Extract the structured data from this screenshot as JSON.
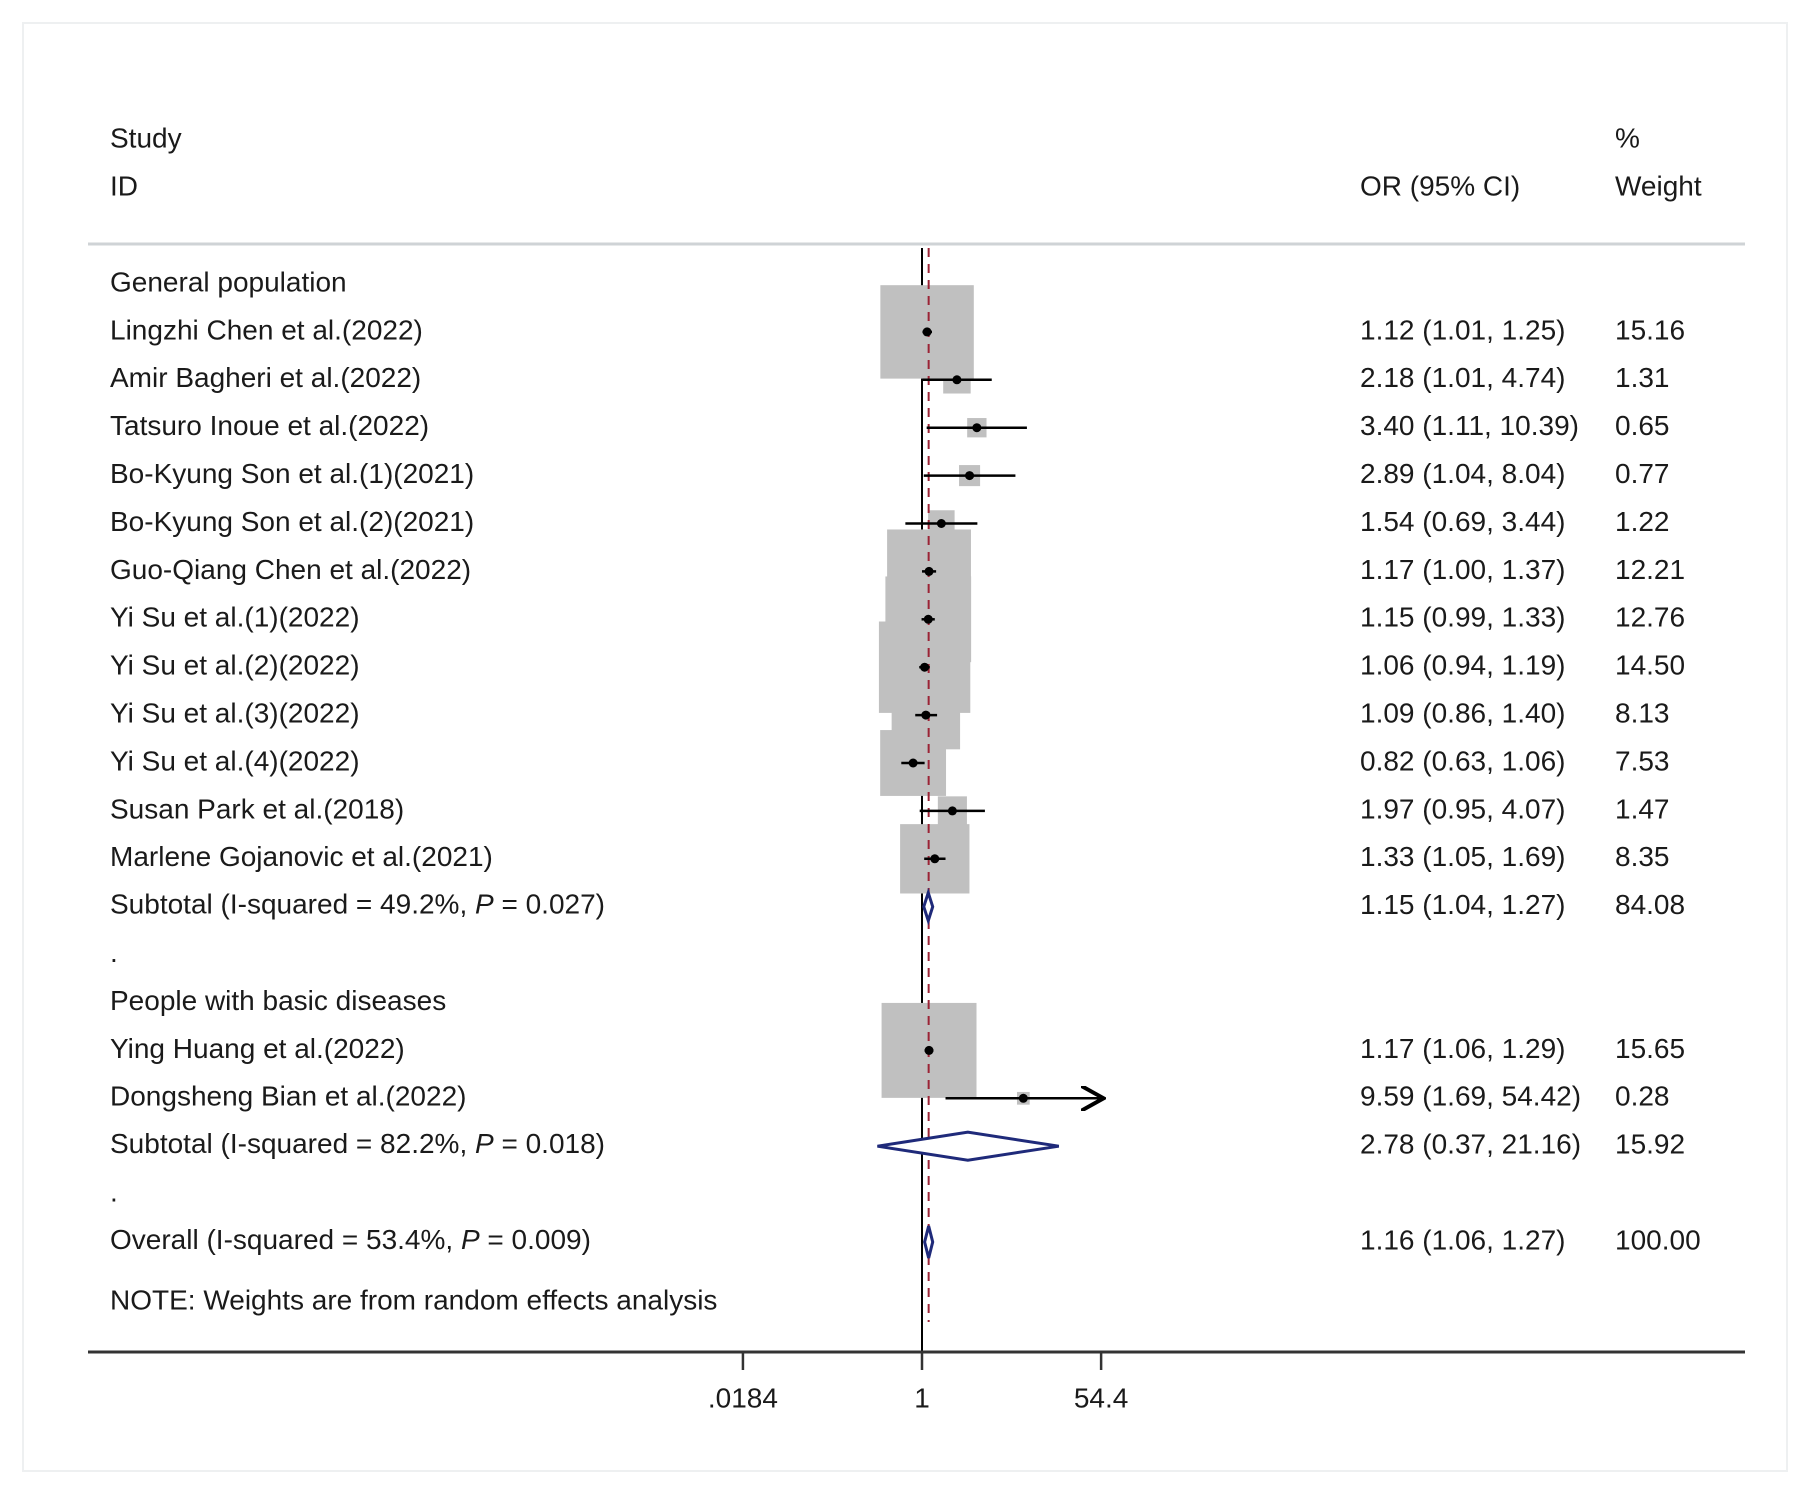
{
  "chart_data": {
    "type": "forest",
    "title": "",
    "scale": "log",
    "xlim": [
      0.0184,
      54.4
    ],
    "xticks": [
      ".0184",
      "1",
      "54.4"
    ],
    "null_value": 1,
    "overall_reference": 1.16,
    "header": {
      "study_line1": "Study",
      "study_line2": "ID",
      "or_label": "OR (95% CI)",
      "weight_line1": "%",
      "weight_line2": "Weight"
    },
    "rows": [
      {
        "type": "group",
        "label": "General population"
      },
      {
        "type": "study",
        "label": "Lingzhi Chen et al.(2022)",
        "or": 1.12,
        "lo": 1.01,
        "hi": 1.25,
        "ci_text": "1.12 (1.01, 1.25)",
        "weight": 15.16,
        "weight_text": "15.16"
      },
      {
        "type": "study",
        "label": "Amir Bagheri et al.(2022)",
        "or": 2.18,
        "lo": 1.01,
        "hi": 4.74,
        "ci_text": "2.18 (1.01, 4.74)",
        "weight": 1.31,
        "weight_text": "1.31"
      },
      {
        "type": "study",
        "label": "Tatsuro Inoue et al.(2022)",
        "or": 3.4,
        "lo": 1.11,
        "hi": 10.39,
        "ci_text": "3.40 (1.11, 10.39)",
        "weight": 0.65,
        "weight_text": "0.65"
      },
      {
        "type": "study",
        "label": "Bo-Kyung Son et al.(1)(2021)",
        "or": 2.89,
        "lo": 1.04,
        "hi": 8.04,
        "ci_text": "2.89 (1.04, 8.04)",
        "weight": 0.77,
        "weight_text": "0.77"
      },
      {
        "type": "study",
        "label": "Bo-Kyung Son et al.(2)(2021)",
        "or": 1.54,
        "lo": 0.69,
        "hi": 3.44,
        "ci_text": "1.54 (0.69, 3.44)",
        "weight": 1.22,
        "weight_text": "1.22"
      },
      {
        "type": "study",
        "label": "Guo-Qiang Chen et al.(2022)",
        "or": 1.17,
        "lo": 1.0,
        "hi": 1.37,
        "ci_text": "1.17 (1.00, 1.37)",
        "weight": 12.21,
        "weight_text": "12.21"
      },
      {
        "type": "study",
        "label": "Yi Su et al.(1)(2022)",
        "or": 1.15,
        "lo": 0.99,
        "hi": 1.33,
        "ci_text": "1.15 (0.99, 1.33)",
        "weight": 12.76,
        "weight_text": "12.76"
      },
      {
        "type": "study",
        "label": "Yi Su et al.(2)(2022)",
        "or": 1.06,
        "lo": 0.94,
        "hi": 1.19,
        "ci_text": "1.06 (0.94, 1.19)",
        "weight": 14.5,
        "weight_text": "14.50"
      },
      {
        "type": "study",
        "label": "Yi Su et al.(3)(2022)",
        "or": 1.09,
        "lo": 0.86,
        "hi": 1.4,
        "ci_text": "1.09 (0.86, 1.40)",
        "weight": 8.13,
        "weight_text": "8.13"
      },
      {
        "type": "study",
        "label": "Yi Su et al.(4)(2022)",
        "or": 0.82,
        "lo": 0.63,
        "hi": 1.06,
        "ci_text": "0.82 (0.63, 1.06)",
        "weight": 7.53,
        "weight_text": "7.53"
      },
      {
        "type": "study",
        "label": "Susan Park et al.(2018)",
        "or": 1.97,
        "lo": 0.95,
        "hi": 4.07,
        "ci_text": "1.97 (0.95, 4.07)",
        "weight": 1.47,
        "weight_text": "1.47"
      },
      {
        "type": "study",
        "label": "Marlene Gojanovic et al.(2021)",
        "or": 1.33,
        "lo": 1.05,
        "hi": 1.69,
        "ci_text": "1.33 (1.05, 1.69)",
        "weight": 8.35,
        "weight_text": "8.35"
      },
      {
        "type": "subtotal",
        "prefix": "Subtotal  (I-squared = 49.2%, ",
        "p_letter": "P",
        "p_value": " = 0.027)",
        "or": 1.15,
        "lo": 1.04,
        "hi": 1.27,
        "ci_text": "1.15 (1.04, 1.27)",
        "weight": 84.08,
        "weight_text": "84.08"
      },
      {
        "type": "spacer",
        "label": "."
      },
      {
        "type": "group",
        "label": "People with basic diseases"
      },
      {
        "type": "study",
        "label": "Ying Huang et al.(2022)",
        "or": 1.17,
        "lo": 1.06,
        "hi": 1.29,
        "ci_text": "1.17 (1.06, 1.29)",
        "weight": 15.65,
        "weight_text": "15.65"
      },
      {
        "type": "study",
        "label": "Dongsheng Bian et al.(2022)",
        "or": 9.59,
        "lo": 1.69,
        "hi": 54.42,
        "ci_text": "9.59 (1.69, 54.42)",
        "weight": 0.28,
        "weight_text": "0.28",
        "arrow": true
      },
      {
        "type": "subtotal",
        "prefix": "Subtotal  (I-squared = 82.2%, ",
        "p_letter": "P",
        "p_value": " = 0.018)",
        "or": 2.78,
        "lo": 0.37,
        "hi": 21.16,
        "ci_text": "2.78 (0.37, 21.16)",
        "weight": 15.92,
        "weight_text": "15.92"
      },
      {
        "type": "spacer",
        "label": "."
      },
      {
        "type": "overall",
        "prefix": "Overall  (I-squared = 53.4%, ",
        "p_letter": "P",
        "p_value": " = 0.009)",
        "or": 1.16,
        "lo": 1.06,
        "hi": 1.27,
        "ci_text": "1.16 (1.06, 1.27)",
        "weight": 100.0,
        "weight_text": "100.00"
      }
    ],
    "note": "NOTE: Weights are from random effects analysis",
    "colors": {
      "box": "#c0c0c0",
      "diamond": "#1f2a7a",
      "reference_line": "#9b2335",
      "axis": "#333333",
      "text": "#1a1a1a"
    }
  }
}
